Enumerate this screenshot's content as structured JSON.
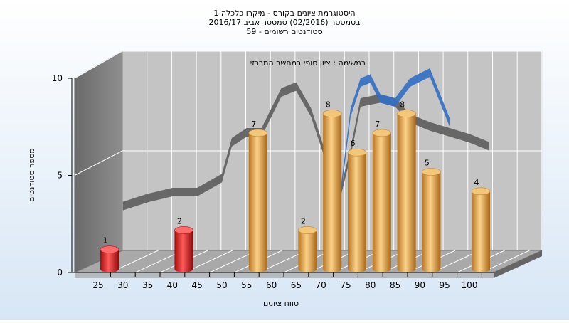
{
  "chart_data": {
    "type": "bar",
    "title_lines": [
      "היסטוגרמת ציונים בקורס - מיקרו כלכלה 1",
      "בסמסטר  (02/2016)  סמסטר אביב 2016/17",
      "סטודנטים רשומים - 59"
    ],
    "annotation": "במשימה : ציון סופי במחשב המרכזי",
    "xlabel": "טווח ציונים",
    "ylabel": "מספר סטודנטים",
    "ylim": [
      0,
      10
    ],
    "yticks": [
      0,
      5,
      10
    ],
    "categories": [
      "25",
      "30",
      "35",
      "40",
      "45",
      "50",
      "55",
      "60",
      "65",
      "70",
      "75",
      "80",
      "85",
      "90",
      "95",
      "100"
    ],
    "bars": [
      {
        "category": "25",
        "value": 1,
        "label": "1",
        "color": "red"
      },
      {
        "category": "40",
        "value": 2,
        "label": "2",
        "color": "red"
      },
      {
        "category": "55",
        "value": 7,
        "label": "7",
        "color": "gold"
      },
      {
        "category": "65",
        "value": 2,
        "label": "2",
        "color": "gold"
      },
      {
        "category": "70",
        "value": 8,
        "label": "8",
        "color": "gold"
      },
      {
        "category": "75",
        "value": 6,
        "label": "6",
        "color": "gold"
      },
      {
        "category": "80",
        "value": 7,
        "label": "7",
        "color": "gold"
      },
      {
        "category": "85",
        "value": 8,
        "label": "8",
        "color": "gold"
      },
      {
        "category": "90",
        "value": 5,
        "label": "5",
        "color": "gold"
      },
      {
        "category": "100",
        "value": 4,
        "label": "4",
        "color": "gold"
      }
    ],
    "overlay_lines": [
      {
        "color": "#5e5e5e",
        "points": [
          [
            30,
            1.8
          ],
          [
            35,
            2.2
          ],
          [
            40,
            2.5
          ],
          [
            45,
            2.5
          ],
          [
            50,
            3.2
          ],
          [
            52,
            5.0
          ],
          [
            55,
            5.5
          ],
          [
            58,
            5.5
          ],
          [
            62,
            7.5
          ],
          [
            65,
            7.8
          ],
          [
            68,
            6.5
          ],
          [
            72,
            3.5
          ],
          [
            74,
            2.5
          ],
          [
            76,
            4.5
          ],
          [
            78,
            7.0
          ],
          [
            82,
            7.2
          ],
          [
            85,
            7.0
          ],
          [
            88,
            6.2
          ],
          [
            92,
            5.8
          ],
          [
            96,
            5.5
          ],
          [
            100,
            5.2
          ],
          [
            104,
            4.8
          ]
        ]
      },
      {
        "color": "#3470c4",
        "points": [
          [
            74,
            2.5
          ],
          [
            76,
            6.5
          ],
          [
            78,
            8.0
          ],
          [
            80,
            8.2
          ],
          [
            82,
            7.2
          ],
          [
            85,
            7.0
          ],
          [
            88,
            8.0
          ],
          [
            92,
            8.5
          ],
          [
            96,
            6.0
          ]
        ]
      }
    ],
    "colors": {
      "red": "#e41f1f",
      "gold": "#e8a33d",
      "grid": "#ffffff",
      "wall": "#c4c4c4",
      "side_wall": "#7a7a7a",
      "floor": "#a9a9a9"
    }
  }
}
